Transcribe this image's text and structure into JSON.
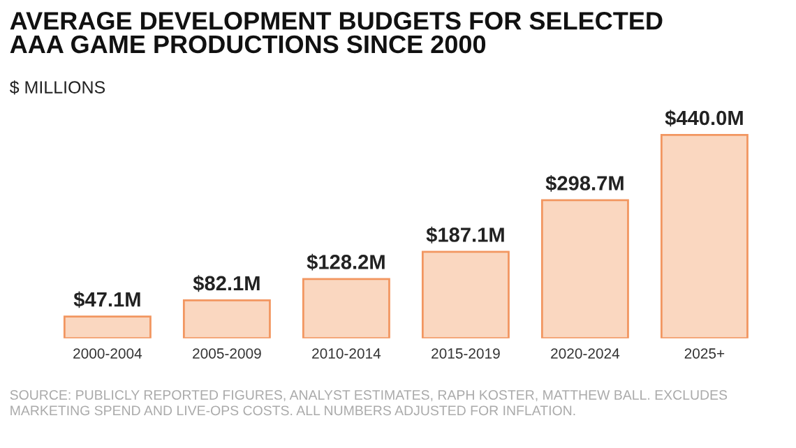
{
  "chart_data": {
    "type": "bar",
    "title": "AVERAGE DEVELOPMENT BUDGETS FOR SELECTED\nAAA GAME PRODUCTIONS SINCE 2000",
    "subtitle": "$ MILLIONS",
    "categories": [
      "2000-2004",
      "2005-2009",
      "2010-2014",
      "2015-2019",
      "2020-2024",
      "2025+"
    ],
    "values": [
      47.1,
      82.1,
      128.2,
      187.1,
      298.7,
      440.0
    ],
    "value_labels": [
      "$47.1M",
      "$82.1M",
      "$128.2M",
      "$187.1M",
      "$298.7M",
      "$440.0M"
    ],
    "color": "#fad7c0",
    "annotations": [
      "SOURCE: PUBLICLY REPORTED FIGURES, ANALYST ESTIMATES, RAPH KOSTER, MATTHEW BALL. EXCLUDES MARKETING SPEND AND LIVE-OPS COSTS. ALL NUMBERS ADJUSTED FOR INFLATION."
    ],
    "grid": false,
    "legend": false
  }
}
